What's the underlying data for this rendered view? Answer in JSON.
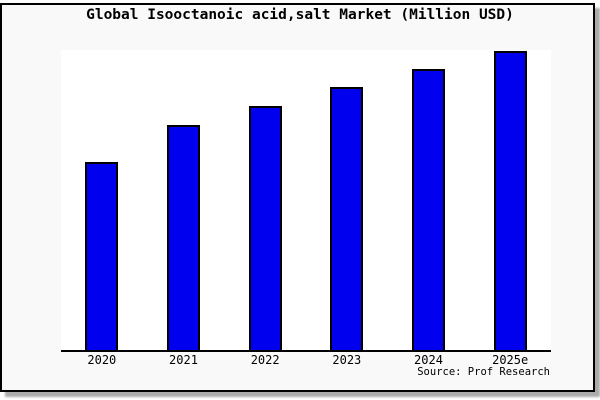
{
  "title": "Global Isooctanoic acid,salt Market (Million USD)",
  "source_note": "Source: Prof Research",
  "colors": {
    "bar_fill": "#0000EE",
    "bar_border": "#000000",
    "panel_background": "#f9f9f9",
    "plot_background": "#ffffff",
    "axis_line": "#000000",
    "shadow": "#ababab"
  },
  "chart_data": {
    "type": "bar",
    "title": "Global Isooctanoic acid,salt Market (Million USD)",
    "categories": [
      "2020",
      "2021",
      "2022",
      "2023",
      "2024",
      "2025e"
    ],
    "values": [
      188,
      225,
      244,
      263,
      281,
      299
    ],
    "values_note": "y-axis has no ticks or labels; values are relative bar heights (pixels), proportional to market size",
    "xlabel": "",
    "ylabel": "",
    "ylim": [
      0,
      300
    ],
    "grid": false,
    "legend": false,
    "bar_color": "#0000EE",
    "bar_border_color": "#000000"
  }
}
